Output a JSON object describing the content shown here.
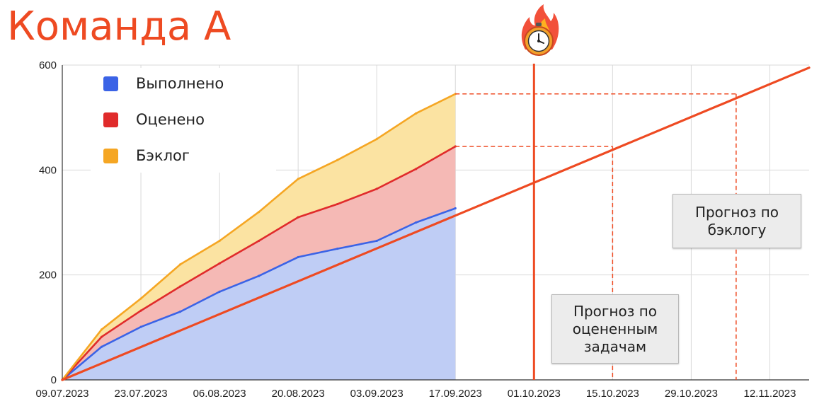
{
  "title": "Команда А",
  "colors": {
    "title": "#ee4a22",
    "done": "#3b63e6",
    "done_fill": "#bfcdf5",
    "estimated": "#e02b2b",
    "estimated_fill": "#f5b9b5",
    "backlog": "#f5a623",
    "backlog_fill": "#fbe3a2",
    "forecast": "#ee4a22"
  },
  "icons": {
    "deadline": "alarm-clock-on-fire-icon"
  },
  "chart_data": {
    "type": "area",
    "x_start": "2023-07-09",
    "x_end": "2023-11-19",
    "ylim": [
      0,
      600
    ],
    "yticks": [
      0,
      200,
      400,
      600
    ],
    "xtick_labels": [
      "09.07.2023",
      "23.07.2023",
      "06.08.2023",
      "20.08.2023",
      "03.09.2023",
      "17.09.2023",
      "01.10.2023",
      "15.10.2023",
      "29.10.2023",
      "12.11.2023"
    ],
    "grid": true,
    "legend": {
      "position": "top-left",
      "entries": [
        "Выполнено",
        "Оценено",
        "Бэклог"
      ]
    },
    "x": [
      "2023-07-09",
      "2023-07-16",
      "2023-07-23",
      "2023-07-30",
      "2023-08-06",
      "2023-08-13",
      "2023-08-20",
      "2023-08-27",
      "2023-09-03",
      "2023-09-10",
      "2023-09-17"
    ],
    "series": [
      {
        "name": "Выполнено",
        "values": [
          0,
          63,
          101,
          130,
          168,
          198,
          234,
          250,
          265,
          300,
          327
        ]
      },
      {
        "name": "Оценено",
        "values": [
          0,
          82,
          132,
          178,
          222,
          265,
          310,
          335,
          364,
          402,
          445
        ]
      },
      {
        "name": "Бэклог",
        "values": [
          0,
          96,
          155,
          220,
          265,
          320,
          383,
          419,
          459,
          508,
          545
        ]
      }
    ],
    "trend_line": {
      "from": [
        "2023-07-09",
        0
      ],
      "to": [
        "2023-11-19",
        595
      ]
    },
    "deadline": "2023-10-01",
    "forecasts": [
      {
        "label": "Прогноз по оцененным задачам",
        "value": 445,
        "date": "2023-10-15"
      },
      {
        "label": "Прогноз по бэклогу",
        "value": 545,
        "date": "2023-11-06"
      }
    ]
  }
}
